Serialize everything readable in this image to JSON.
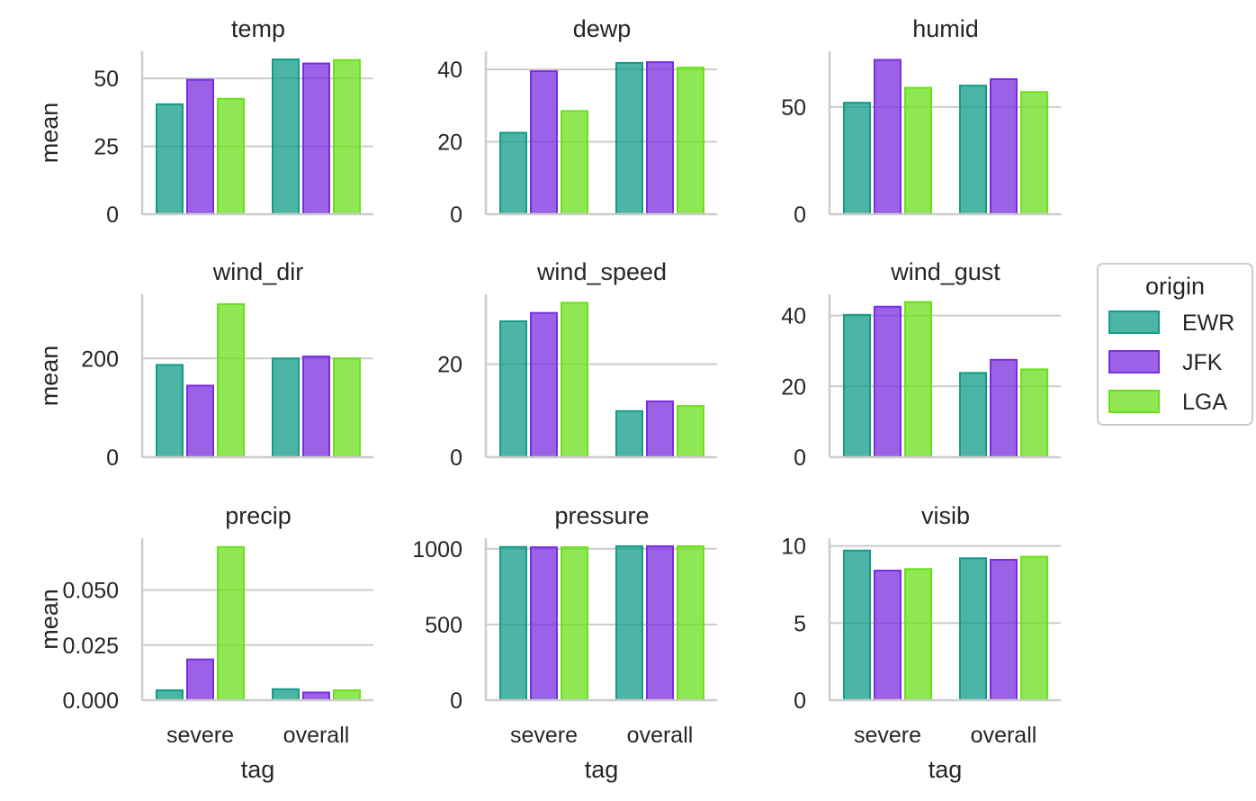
{
  "colors": {
    "EWR": "#129c87",
    "JFK": "#7a2de0",
    "LGA": "#6ae01a",
    "grid": "#cccccc",
    "text": "#262626"
  },
  "legend": {
    "title": "origin",
    "position": "right"
  },
  "chart_data": {
    "type": "bar",
    "layout": "facet-grid 3x3",
    "categories": [
      "severe",
      "overall"
    ],
    "hue": [
      "EWR",
      "JFK",
      "LGA"
    ],
    "xlabel": "tag",
    "ylabel": "mean",
    "grid": "horizontal",
    "panels": [
      {
        "title": "temp",
        "ylim": [
          0,
          60
        ],
        "ticks": [
          0,
          25,
          50
        ],
        "tick_labels": [
          "0",
          "25",
          "50"
        ],
        "series": [
          {
            "name": "EWR",
            "values": [
              40.5,
              57
            ]
          },
          {
            "name": "JFK",
            "values": [
              49.5,
              55.5
            ]
          },
          {
            "name": "LGA",
            "values": [
              42.5,
              56.8
            ]
          }
        ]
      },
      {
        "title": "dewp",
        "ylim": [
          0,
          45
        ],
        "ticks": [
          0,
          20,
          40
        ],
        "tick_labels": [
          "0",
          "20",
          "40"
        ],
        "series": [
          {
            "name": "EWR",
            "values": [
              22.5,
              41.8
            ]
          },
          {
            "name": "JFK",
            "values": [
              39.5,
              42
            ]
          },
          {
            "name": "LGA",
            "values": [
              28.5,
              40.5
            ]
          }
        ]
      },
      {
        "title": "humid",
        "ylim": [
          0,
          76
        ],
        "ticks": [
          0,
          50
        ],
        "tick_labels": [
          "0",
          "50"
        ],
        "series": [
          {
            "name": "EWR",
            "values": [
              52,
              60
            ]
          },
          {
            "name": "JFK",
            "values": [
              72,
              63
            ]
          },
          {
            "name": "LGA",
            "values": [
              59,
              57
            ]
          }
        ]
      },
      {
        "title": "wind_dir",
        "ylim": [
          0,
          330
        ],
        "ticks": [
          0,
          200
        ],
        "tick_labels": [
          "0",
          "200"
        ],
        "series": [
          {
            "name": "EWR",
            "values": [
              187,
              200
            ]
          },
          {
            "name": "JFK",
            "values": [
              145,
              204
            ]
          },
          {
            "name": "LGA",
            "values": [
              310,
              200
            ]
          }
        ]
      },
      {
        "title": "wind_speed",
        "ylim": [
          0,
          35
        ],
        "ticks": [
          0,
          20
        ],
        "tick_labels": [
          "0",
          "20"
        ],
        "series": [
          {
            "name": "EWR",
            "values": [
              29.2,
              9.9
            ]
          },
          {
            "name": "JFK",
            "values": [
              31,
              12
            ]
          },
          {
            "name": "LGA",
            "values": [
              33.2,
              11
            ]
          }
        ]
      },
      {
        "title": "wind_gust",
        "ylim": [
          0,
          46
        ],
        "ticks": [
          0,
          20,
          40
        ],
        "tick_labels": [
          "0",
          "20",
          "40"
        ],
        "series": [
          {
            "name": "EWR",
            "values": [
              40.2,
              23.8
            ]
          },
          {
            "name": "JFK",
            "values": [
              42.5,
              27.5
            ]
          },
          {
            "name": "LGA",
            "values": [
              43.8,
              24.8
            ]
          }
        ]
      },
      {
        "title": "precip",
        "ylim": [
          0,
          0.0735
        ],
        "ticks": [
          0,
          0.025,
          0.05
        ],
        "tick_labels": [
          "0.000",
          "0.025",
          "0.050"
        ],
        "series": [
          {
            "name": "EWR",
            "values": [
              0.0045,
              0.005
            ]
          },
          {
            "name": "JFK",
            "values": [
              0.0185,
              0.0035
            ]
          },
          {
            "name": "LGA",
            "values": [
              0.0695,
              0.0045
            ]
          }
        ]
      },
      {
        "title": "pressure",
        "ylim": [
          0,
          1070
        ],
        "ticks": [
          0,
          500,
          1000
        ],
        "tick_labels": [
          "0",
          "500",
          "1000"
        ],
        "series": [
          {
            "name": "EWR",
            "values": [
              1012,
              1017
            ]
          },
          {
            "name": "JFK",
            "values": [
              1010,
              1017
            ]
          },
          {
            "name": "LGA",
            "values": [
              1010,
              1017
            ]
          }
        ]
      },
      {
        "title": "visib",
        "ylim": [
          0,
          10.5
        ],
        "ticks": [
          0,
          5,
          10
        ],
        "tick_labels": [
          "0",
          "5",
          "10"
        ],
        "series": [
          {
            "name": "EWR",
            "values": [
              9.7,
              9.2
            ]
          },
          {
            "name": "JFK",
            "values": [
              8.4,
              9.1
            ]
          },
          {
            "name": "LGA",
            "values": [
              8.5,
              9.3
            ]
          }
        ]
      }
    ]
  }
}
